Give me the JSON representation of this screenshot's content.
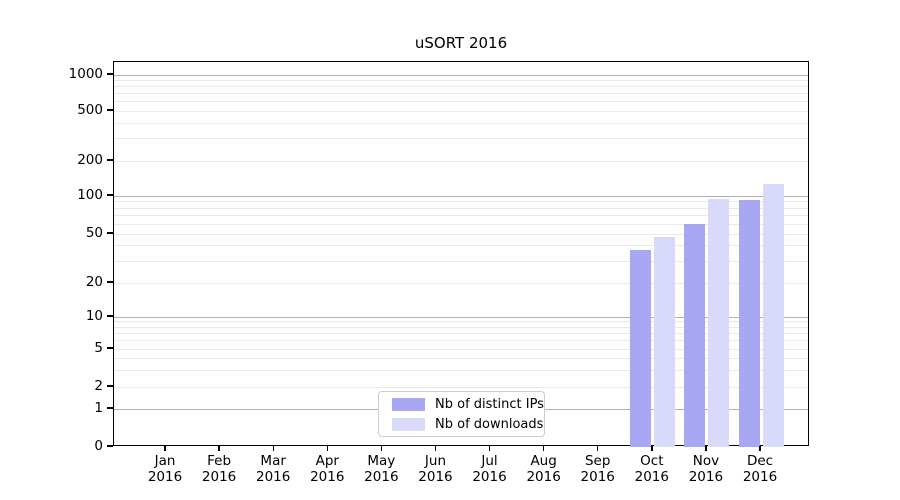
{
  "title": "uSORT 2016",
  "chart_data": {
    "type": "bar",
    "title": "uSORT 2016",
    "categories": [
      "Jan",
      "Feb",
      "Mar",
      "Apr",
      "May",
      "Jun",
      "Jul",
      "Aug",
      "Sep",
      "Oct",
      "Nov",
      "Dec"
    ],
    "year_label": "2016",
    "series": [
      {
        "name": "Nb of distinct IPs",
        "color": "#a7a7f4",
        "values": [
          0,
          0,
          0,
          0,
          0,
          0,
          0,
          0,
          0,
          37,
          60,
          93
        ]
      },
      {
        "name": "Nb of downloads",
        "color": "#d9d9fa",
        "values": [
          0,
          0,
          0,
          0,
          0,
          0,
          0,
          0,
          0,
          47,
          95,
          128
        ]
      }
    ],
    "y_ticks": [
      0,
      1,
      2,
      5,
      10,
      20,
      50,
      100,
      200,
      500,
      1000
    ],
    "y_scale": "symlog",
    "ylim": [
      0,
      1300
    ],
    "xlabel": "",
    "ylabel": "",
    "grid": true,
    "legend_position": "lower center",
    "colors": {
      "major_grid": "#b2b2b2",
      "minor_grid": "#e9e9e9",
      "axis": "#000000",
      "background": "#ffffff"
    }
  },
  "legend": {
    "items": [
      {
        "label": "Nb of distinct IPs",
        "color": "#a7a7f4"
      },
      {
        "label": "Nb of downloads",
        "color": "#d9d9fa"
      }
    ]
  }
}
